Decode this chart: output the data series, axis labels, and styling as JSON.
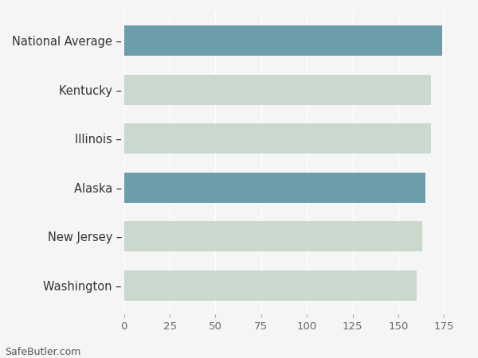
{
  "categories": [
    "Washington",
    "New Jersey",
    "Alaska",
    "Illinois",
    "Kentucky",
    "National Average"
  ],
  "values": [
    160,
    163,
    165,
    168,
    168,
    174
  ],
  "bar_colors": [
    "#c9d9cd",
    "#c9d9cd",
    "#6b9daa",
    "#c9d9cd",
    "#c9d9cd",
    "#6b9daa"
  ],
  "background_color": "#f5f5f5",
  "xlim": [
    0,
    187
  ],
  "xticks": [
    0,
    25,
    50,
    75,
    100,
    125,
    150,
    175
  ],
  "grid_color": "#ffffff",
  "bar_height": 0.62,
  "footer_text": "SafeButler.com",
  "label_fontsize": 10.5,
  "tick_fontsize": 9.5,
  "footer_fontsize": 9
}
